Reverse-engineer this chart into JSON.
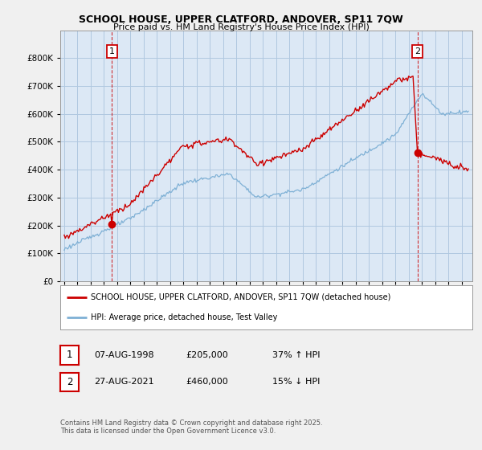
{
  "title": "SCHOOL HOUSE, UPPER CLATFORD, ANDOVER, SP11 7QW",
  "subtitle": "Price paid vs. HM Land Registry's House Price Index (HPI)",
  "legend_line1": "SCHOOL HOUSE, UPPER CLATFORD, ANDOVER, SP11 7QW (detached house)",
  "legend_line2": "HPI: Average price, detached house, Test Valley",
  "sale1_date": "07-AUG-1998",
  "sale1_price": "£205,000",
  "sale1_hpi": "37% ↑ HPI",
  "sale2_date": "27-AUG-2021",
  "sale2_price": "£460,000",
  "sale2_hpi": "15% ↓ HPI",
  "footer": "Contains HM Land Registry data © Crown copyright and database right 2025.\nThis data is licensed under the Open Government Licence v3.0.",
  "red_color": "#cc0000",
  "blue_color": "#7eb0d5",
  "bg_color": "#f0f0f0",
  "plot_bg": "#dce8f5",
  "grid_color": "#b0c8e0",
  "ylim": [
    0,
    900000
  ],
  "yticks": [
    0,
    100000,
    200000,
    300000,
    400000,
    500000,
    600000,
    700000,
    800000
  ],
  "xlim_start": 1994.7,
  "xlim_end": 2025.8,
  "sale1_x": 1998.6,
  "sale1_y": 205000,
  "sale2_x": 2021.65,
  "sale2_y": 460000
}
